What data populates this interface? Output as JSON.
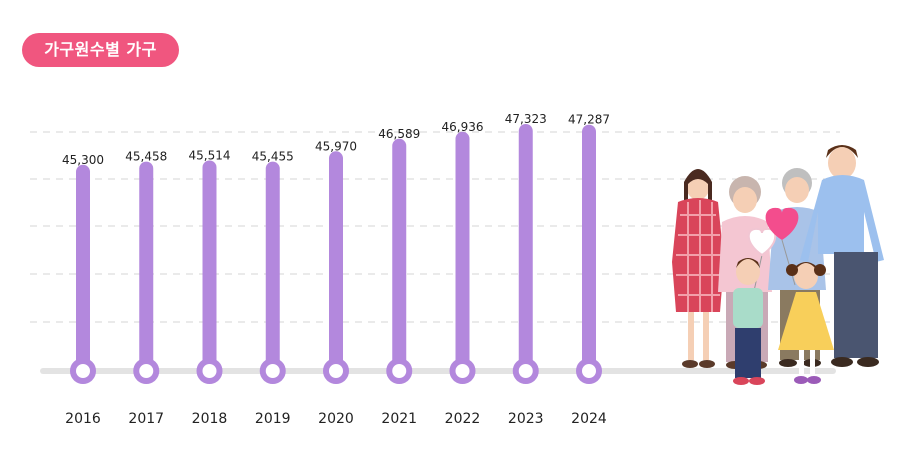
{
  "badge": {
    "label": "가구원수별 가구"
  },
  "colors": {
    "accent": "#f0567f",
    "bar": "#b388dd",
    "baseline": "#e3e3e3",
    "grid": "#d4d4d4"
  },
  "chart_data": {
    "type": "bar",
    "categories": [
      "2016",
      "2017",
      "2018",
      "2019",
      "2020",
      "2021",
      "2022",
      "2023",
      "2024"
    ],
    "values": [
      45300,
      45458,
      45514,
      45455,
      45970,
      46589,
      46936,
      47323,
      47287
    ],
    "value_labels": [
      "45,300",
      "45,458",
      "45,514",
      "45,455",
      "45,970",
      "46,589",
      "46,936",
      "47,323",
      "47,287"
    ],
    "title": "가구원수별 가구",
    "xlabel": "",
    "ylabel": "",
    "grid": true,
    "legend": "none"
  },
  "illustration": {
    "icon": "family-illustration"
  }
}
